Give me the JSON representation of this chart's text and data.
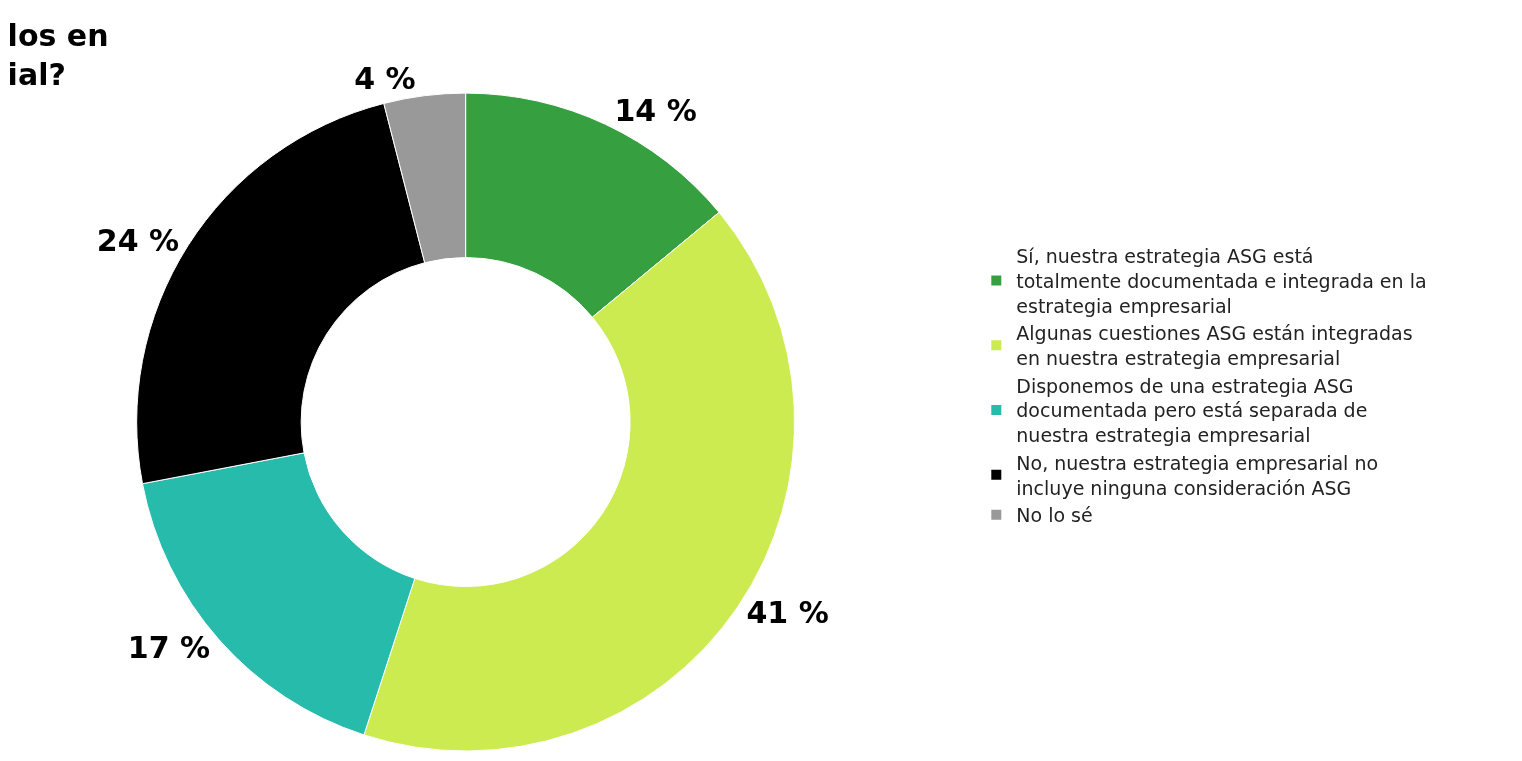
{
  "chart_data": {
    "type": "donut",
    "title": "los en\nial?",
    "categories": [
      "Sí, nuestra estrategia ASG está totalmente documentada e integrada en la estrategia empresarial",
      "Algunas cuestiones ASG están integradas en nuestra estrategia empresarial",
      "Disponemos de una estrategia ASG documentada pero está separada de nuestra estrategia empresarial",
      "No, nuestra estrategia empresarial no incluye ninguna consideración ASG",
      "No lo sé"
    ],
    "values": [
      14,
      41,
      17,
      24,
      4
    ],
    "colors": [
      "#36a040",
      "#cbeb50",
      "#26bbab",
      "#000000",
      "#999999"
    ],
    "value_labels": [
      "14 %",
      "41 %",
      "17 %",
      "24 %",
      "4 %"
    ],
    "legend": "right"
  }
}
